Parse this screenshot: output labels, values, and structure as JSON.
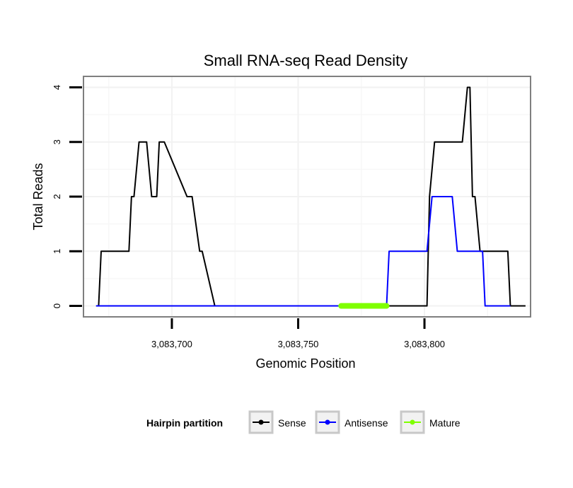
{
  "chart_data": {
    "type": "line",
    "title": "Small RNA-seq Read Density",
    "xlabel": "Genomic Position",
    "ylabel": "Total Reads",
    "xlim": [
      3083665,
      3083842
    ],
    "ylim": [
      -0.2,
      4.2
    ],
    "x_ticks": [
      3083700,
      3083750,
      3083800
    ],
    "x_tick_labels": [
      "3,083,700",
      "3,083,750",
      "3,083,800"
    ],
    "y_ticks": [
      0,
      1,
      2,
      3,
      4
    ],
    "y_tick_labels": [
      "0",
      "1",
      "2",
      "3",
      "4"
    ],
    "grid": true,
    "legend": {
      "title": "Hairpin partition",
      "position": "bottom",
      "entries": [
        "Sense",
        "Antisense",
        "Mature"
      ]
    },
    "series": [
      {
        "name": "Sense",
        "color": "#000000",
        "x": [
          3083670,
          3083671,
          3083672,
          3083683,
          3083684,
          3083685,
          3083687,
          3083690,
          3083692,
          3083694,
          3083695,
          3083697,
          3083706,
          3083708,
          3083711,
          3083712,
          3083717,
          3083718,
          3083718.5,
          3083719,
          3083801,
          3083802,
          3083804,
          3083815,
          3083817,
          3083818,
          3083819,
          3083820,
          3083822,
          3083833,
          3083834,
          3083840
        ],
        "y": [
          0,
          0,
          1,
          1,
          2,
          2,
          3,
          3,
          2,
          2,
          3,
          3,
          2,
          2,
          1,
          1,
          0,
          0,
          0,
          0,
          0,
          2,
          3,
          3,
          4,
          4,
          2,
          2,
          1,
          1,
          0,
          0
        ]
      },
      {
        "name": "Antisense",
        "color": "#0000ff",
        "x": [
          3083670,
          3083785,
          3083786,
          3083801,
          3083803,
          3083811,
          3083813,
          3083823,
          3083824,
          3083834
        ],
        "y": [
          0,
          0,
          1,
          1,
          2,
          2,
          1,
          1,
          0,
          0
        ]
      },
      {
        "name": "Mature",
        "color": "#7fff00",
        "x": [
          3083767,
          3083785
        ],
        "y": [
          0,
          0
        ]
      }
    ]
  }
}
